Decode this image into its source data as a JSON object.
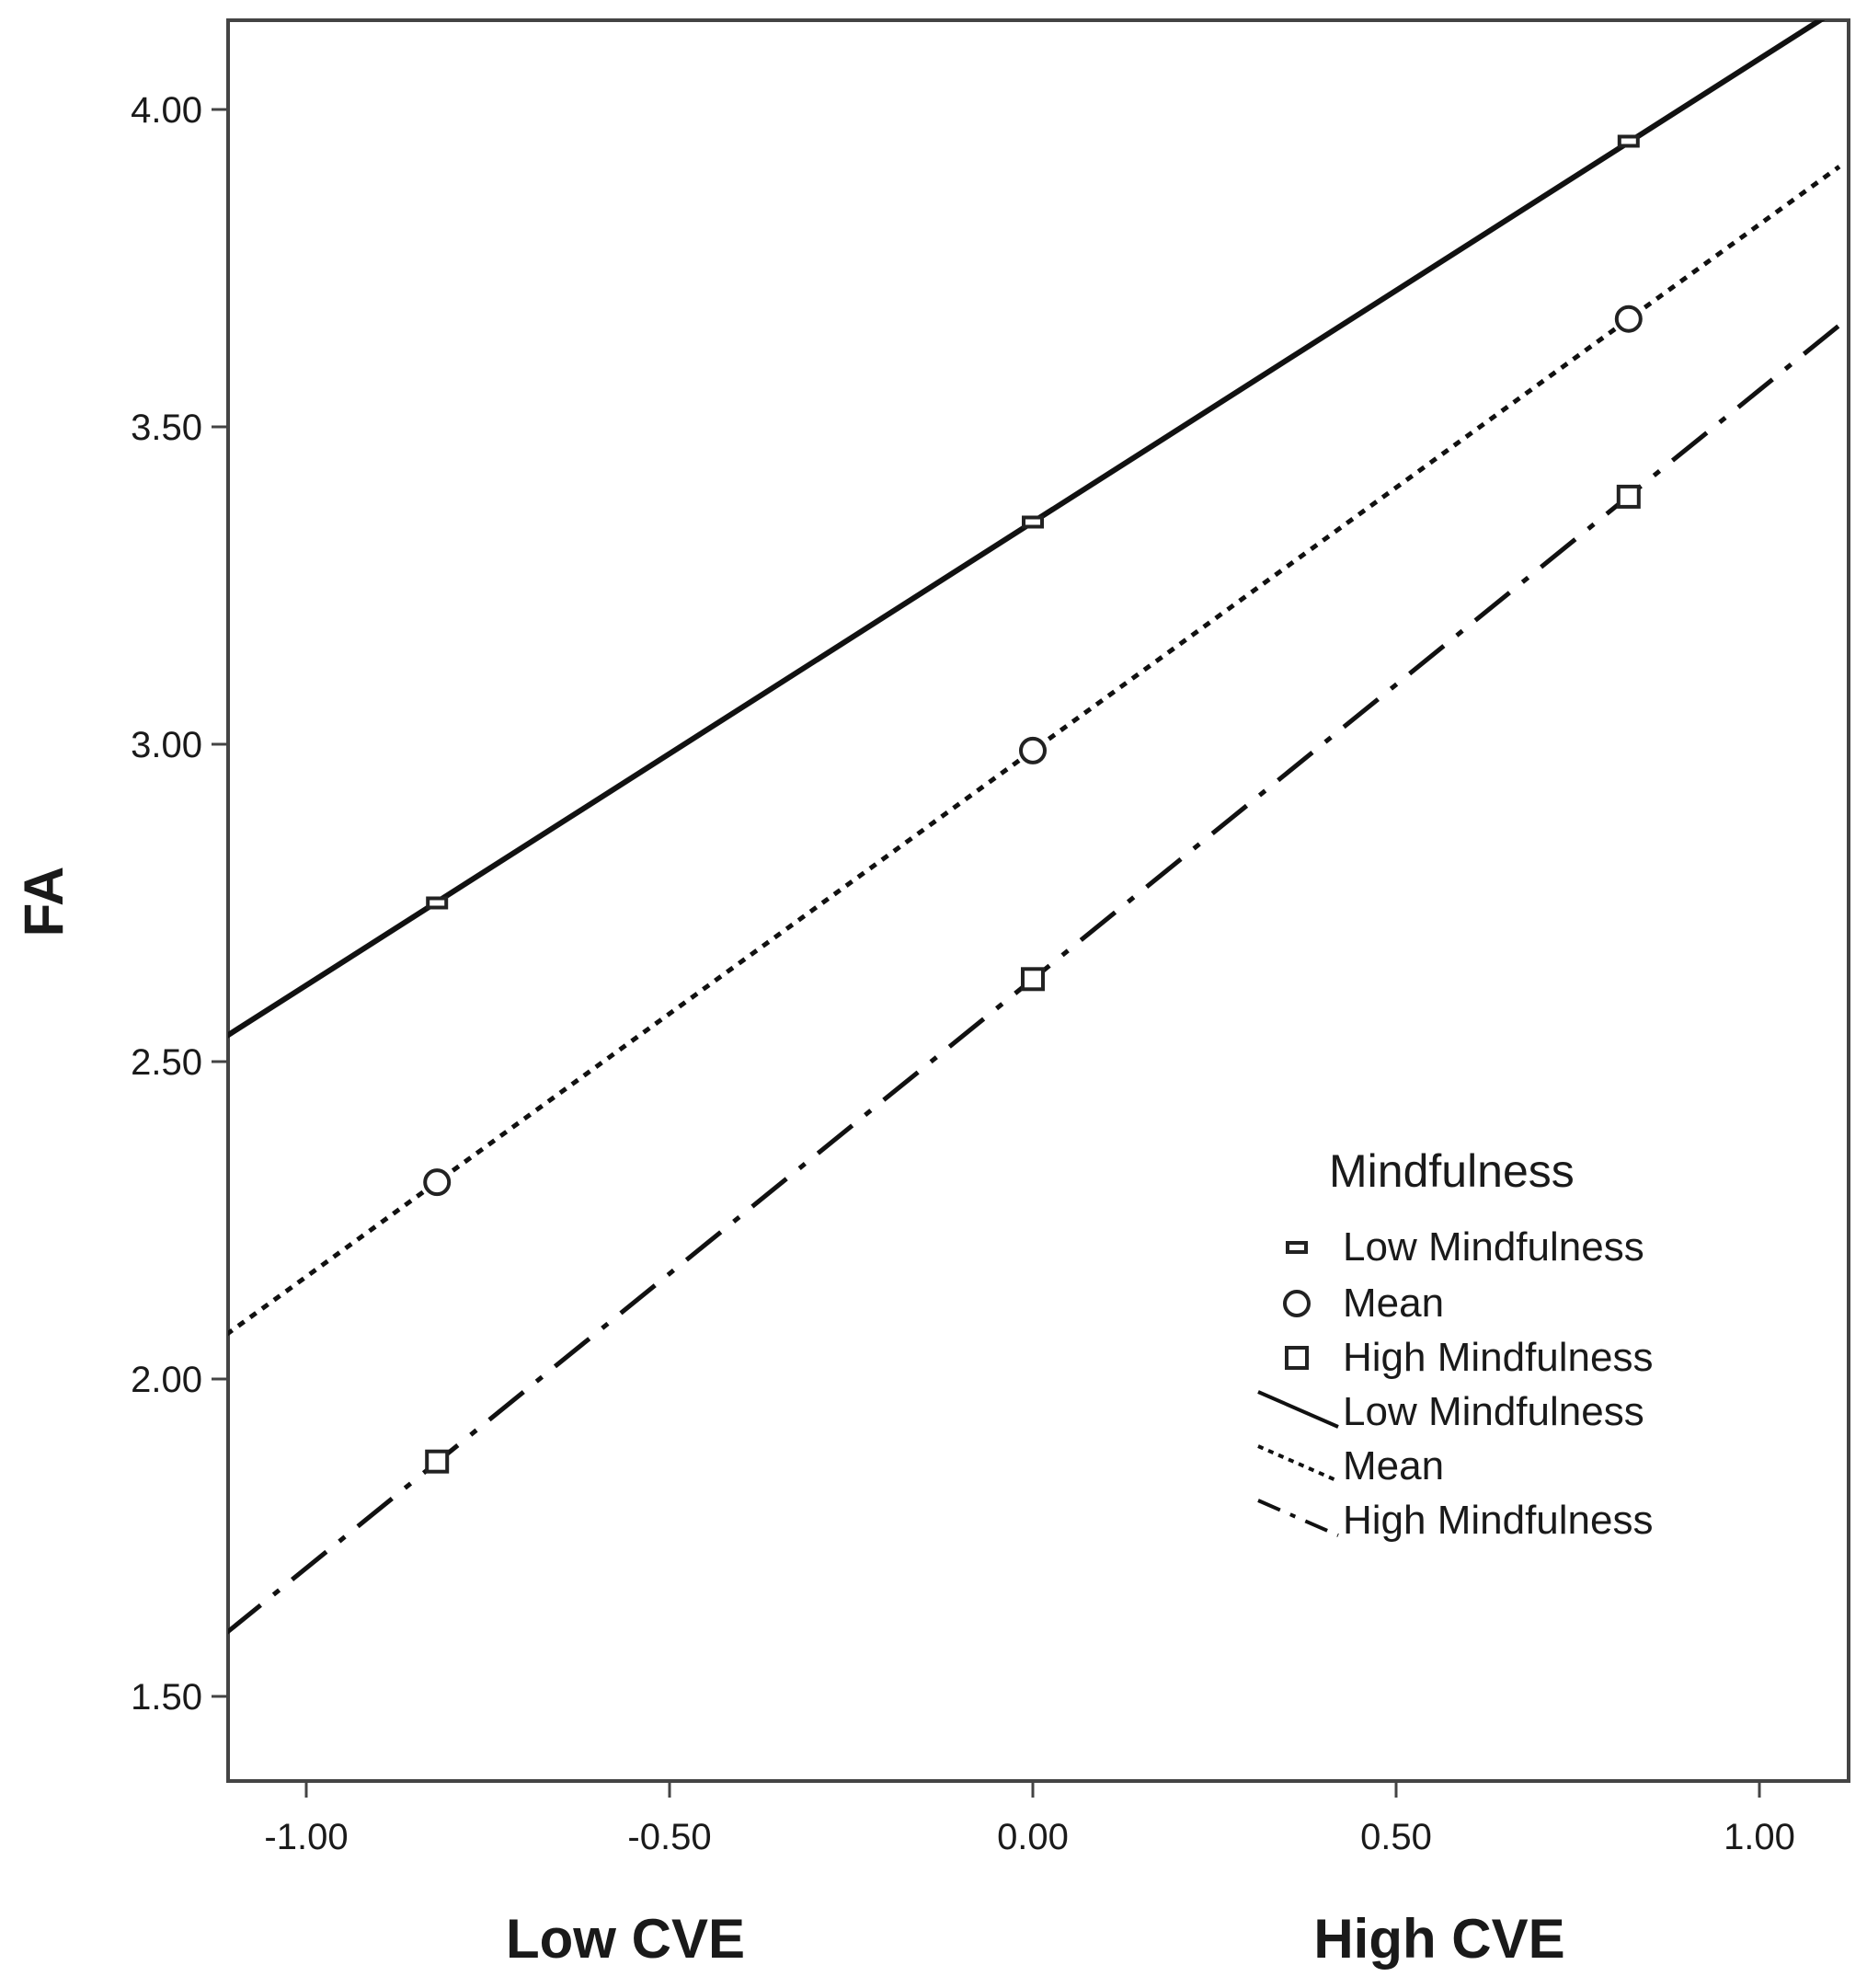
{
  "chart_data": {
    "type": "line",
    "title": "",
    "xlabel_low": "Low CVE",
    "xlabel_high": "High CVE",
    "ylabel": "FA",
    "xlim": [
      -1.11,
      1.11
    ],
    "ylim": [
      1.37,
      4.14
    ],
    "x_ticks": [
      "-1.00",
      "-0.50",
      "0.00",
      "0.50",
      "1.00"
    ],
    "y_ticks": [
      "1.50",
      "2.00",
      "2.50",
      "3.00",
      "3.50",
      "4.00"
    ],
    "grid": false,
    "legend": {
      "title": "Mindfulness",
      "placement": "lower-right",
      "markers": [
        {
          "name": "Low Mindfulness",
          "symbol": "small-square"
        },
        {
          "name": "Mean",
          "symbol": "circle"
        },
        {
          "name": "High Mindfulness",
          "symbol": "square"
        }
      ],
      "lines": [
        {
          "name": "Low Mindfulness",
          "style": "solid"
        },
        {
          "name": "Mean",
          "style": "dotted"
        },
        {
          "name": "High Mindfulness",
          "style": "dash-dot"
        }
      ]
    },
    "series": [
      {
        "name": "Low Mindfulness",
        "marker": "small-square",
        "line": "solid",
        "points": [
          {
            "x": -0.82,
            "y": 2.75
          },
          {
            "x": 0.0,
            "y": 3.35
          },
          {
            "x": 0.82,
            "y": 3.95
          }
        ],
        "fit_line": [
          {
            "x": -1.11,
            "y": 2.54
          },
          {
            "x": 1.11,
            "y": 4.16
          }
        ]
      },
      {
        "name": "Mean",
        "marker": "circle",
        "line": "dotted",
        "points": [
          {
            "x": -0.82,
            "y": 2.31
          },
          {
            "x": 0.0,
            "y": 2.99
          },
          {
            "x": 0.82,
            "y": 3.67
          }
        ],
        "fit_line": [
          {
            "x": -1.11,
            "y": 2.07
          },
          {
            "x": 1.11,
            "y": 3.91
          }
        ]
      },
      {
        "name": "High Mindfulness",
        "marker": "square",
        "line": "dash-dot",
        "points": [
          {
            "x": -0.82,
            "y": 1.87
          },
          {
            "x": 0.0,
            "y": 2.63
          },
          {
            "x": 0.82,
            "y": 3.39
          }
        ],
        "fit_line": [
          {
            "x": -1.11,
            "y": 1.6
          },
          {
            "x": 1.11,
            "y": 3.66
          }
        ]
      }
    ]
  }
}
